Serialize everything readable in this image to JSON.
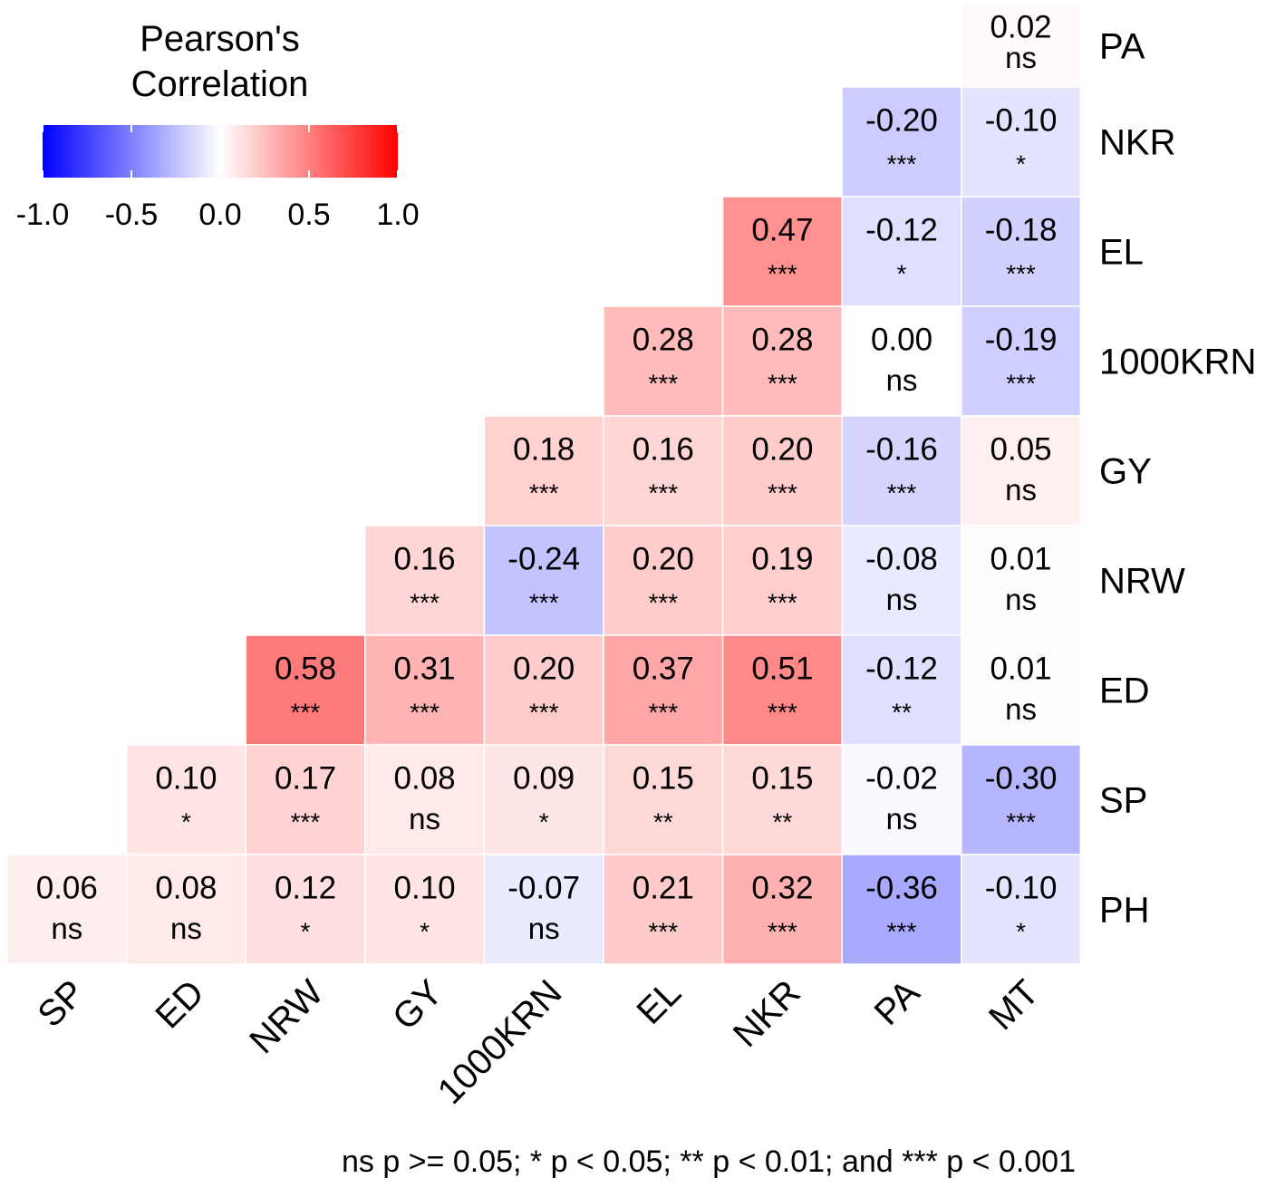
{
  "legend": {
    "title_line1": "Pearson's",
    "title_line2": "Correlation",
    "ticks": [
      "-1.0",
      "-0.5",
      "0.0",
      "0.5",
      "1.0"
    ],
    "scale_min": -1.0,
    "scale_max": 1.0,
    "color_low": "#0000ff",
    "color_mid": "#ffffff",
    "color_high": "#ff0000"
  },
  "footnote": "ns p >= 0.05; * p < 0.05; ** p < 0.01; and *** p < 0.001",
  "chart_data": {
    "type": "heatmap",
    "title": "",
    "x_labels": [
      "SP",
      "ED",
      "NRW",
      "GY",
      "1000KRN",
      "EL",
      "NKR",
      "PA",
      "MT"
    ],
    "y_labels": [
      "PA",
      "NKR",
      "EL",
      "1000KRN",
      "GY",
      "NRW",
      "ED",
      "SP",
      "PH"
    ],
    "color_scale": {
      "low": "#0000ff",
      "mid": "#ffffff",
      "high": "#ff0000",
      "range": [
        -1,
        1
      ]
    },
    "cells": [
      {
        "x": "MT",
        "y": "PA",
        "value": 0.02,
        "label": "0.02",
        "sig": "ns"
      },
      {
        "x": "PA",
        "y": "NKR",
        "value": -0.2,
        "label": "-0.20",
        "sig": "***"
      },
      {
        "x": "MT",
        "y": "NKR",
        "value": -0.1,
        "label": "-0.10",
        "sig": "*"
      },
      {
        "x": "NKR",
        "y": "EL",
        "value": 0.47,
        "label": "0.47",
        "sig": "***"
      },
      {
        "x": "PA",
        "y": "EL",
        "value": -0.12,
        "label": "-0.12",
        "sig": "*"
      },
      {
        "x": "MT",
        "y": "EL",
        "value": -0.18,
        "label": "-0.18",
        "sig": "***"
      },
      {
        "x": "EL",
        "y": "1000KRN",
        "value": 0.28,
        "label": "0.28",
        "sig": "***"
      },
      {
        "x": "NKR",
        "y": "1000KRN",
        "value": 0.28,
        "label": "0.28",
        "sig": "***"
      },
      {
        "x": "PA",
        "y": "1000KRN",
        "value": 0.0,
        "label": "0.00",
        "sig": "ns"
      },
      {
        "x": "MT",
        "y": "1000KRN",
        "value": -0.19,
        "label": "-0.19",
        "sig": "***"
      },
      {
        "x": "1000KRN",
        "y": "GY",
        "value": 0.18,
        "label": "0.18",
        "sig": "***"
      },
      {
        "x": "EL",
        "y": "GY",
        "value": 0.16,
        "label": "0.16",
        "sig": "***"
      },
      {
        "x": "NKR",
        "y": "GY",
        "value": 0.2,
        "label": "0.20",
        "sig": "***"
      },
      {
        "x": "PA",
        "y": "GY",
        "value": -0.16,
        "label": "-0.16",
        "sig": "***"
      },
      {
        "x": "MT",
        "y": "GY",
        "value": 0.05,
        "label": "0.05",
        "sig": "ns"
      },
      {
        "x": "GY",
        "y": "NRW",
        "value": 0.16,
        "label": "0.16",
        "sig": "***"
      },
      {
        "x": "1000KRN",
        "y": "NRW",
        "value": -0.24,
        "label": "-0.24",
        "sig": "***"
      },
      {
        "x": "EL",
        "y": "NRW",
        "value": 0.2,
        "label": "0.20",
        "sig": "***"
      },
      {
        "x": "NKR",
        "y": "NRW",
        "value": 0.19,
        "label": "0.19",
        "sig": "***"
      },
      {
        "x": "PA",
        "y": "NRW",
        "value": -0.08,
        "label": "-0.08",
        "sig": "ns"
      },
      {
        "x": "MT",
        "y": "NRW",
        "value": 0.01,
        "label": "0.01",
        "sig": "ns"
      },
      {
        "x": "NRW",
        "y": "ED",
        "value": 0.58,
        "label": "0.58",
        "sig": "***"
      },
      {
        "x": "GY",
        "y": "ED",
        "value": 0.31,
        "label": "0.31",
        "sig": "***"
      },
      {
        "x": "1000KRN",
        "y": "ED",
        "value": 0.2,
        "label": "0.20",
        "sig": "***"
      },
      {
        "x": "EL",
        "y": "ED",
        "value": 0.37,
        "label": "0.37",
        "sig": "***"
      },
      {
        "x": "NKR",
        "y": "ED",
        "value": 0.51,
        "label": "0.51",
        "sig": "***"
      },
      {
        "x": "PA",
        "y": "ED",
        "value": -0.12,
        "label": "-0.12",
        "sig": "**"
      },
      {
        "x": "MT",
        "y": "ED",
        "value": 0.01,
        "label": "0.01",
        "sig": "ns"
      },
      {
        "x": "ED",
        "y": "SP",
        "value": 0.1,
        "label": "0.10",
        "sig": "*"
      },
      {
        "x": "NRW",
        "y": "SP",
        "value": 0.17,
        "label": "0.17",
        "sig": "***"
      },
      {
        "x": "GY",
        "y": "SP",
        "value": 0.08,
        "label": "0.08",
        "sig": "ns"
      },
      {
        "x": "1000KRN",
        "y": "SP",
        "value": 0.09,
        "label": "0.09",
        "sig": "*"
      },
      {
        "x": "EL",
        "y": "SP",
        "value": 0.15,
        "label": "0.15",
        "sig": "**"
      },
      {
        "x": "NKR",
        "y": "SP",
        "value": 0.15,
        "label": "0.15",
        "sig": "**"
      },
      {
        "x": "PA",
        "y": "SP",
        "value": -0.02,
        "label": "-0.02",
        "sig": "ns"
      },
      {
        "x": "MT",
        "y": "SP",
        "value": -0.3,
        "label": "-0.30",
        "sig": "***"
      },
      {
        "x": "SP",
        "y": "PH",
        "value": 0.06,
        "label": "0.06",
        "sig": "ns"
      },
      {
        "x": "ED",
        "y": "PH",
        "value": 0.08,
        "label": "0.08",
        "sig": "ns"
      },
      {
        "x": "NRW",
        "y": "PH",
        "value": 0.12,
        "label": "0.12",
        "sig": "*"
      },
      {
        "x": "GY",
        "y": "PH",
        "value": 0.1,
        "label": "0.10",
        "sig": "*"
      },
      {
        "x": "1000KRN",
        "y": "PH",
        "value": -0.07,
        "label": "-0.07",
        "sig": "ns"
      },
      {
        "x": "EL",
        "y": "PH",
        "value": 0.21,
        "label": "0.21",
        "sig": "***"
      },
      {
        "x": "NKR",
        "y": "PH",
        "value": 0.32,
        "label": "0.32",
        "sig": "***"
      },
      {
        "x": "PA",
        "y": "PH",
        "value": -0.36,
        "label": "-0.36",
        "sig": "***"
      },
      {
        "x": "MT",
        "y": "PH",
        "value": -0.1,
        "label": "-0.10",
        "sig": "*"
      }
    ]
  }
}
